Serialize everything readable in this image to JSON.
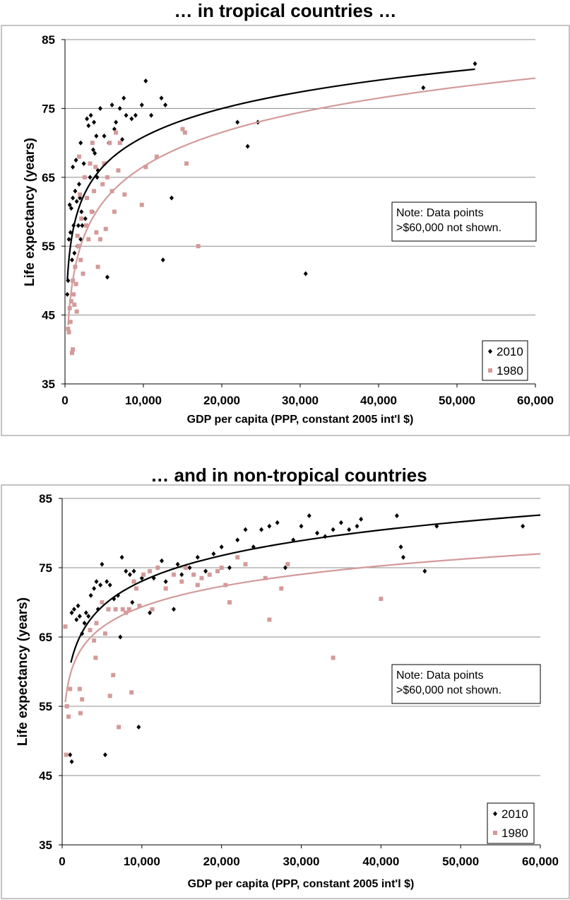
{
  "chart_data": [
    {
      "type": "scatter",
      "title": "… in tropical countries …",
      "xlabel": "GDP per capita (PPP, constant 2005 int'l $)",
      "ylabel": "Life expectancy (years)",
      "xlim": [
        0,
        60000
      ],
      "ylim": [
        35,
        85
      ],
      "x_ticks": [
        "0",
        "10,000",
        "20,000",
        "30,000",
        "40,000",
        "50,000",
        "60,000"
      ],
      "y_ticks": [
        "35",
        "45",
        "55",
        "65",
        "75",
        "85"
      ],
      "grid": "horizontal",
      "note": [
        "Note: Data points",
        ">$60,000 not shown."
      ],
      "legend_position": "bottom-right",
      "series": [
        {
          "name": "2010",
          "color": "#000000",
          "marker": "diamond",
          "points": [
            [
              300,
              48
            ],
            [
              400,
              50
            ],
            [
              500,
              56
            ],
            [
              600,
              61
            ],
            [
              700,
              57
            ],
            [
              800,
              60.5
            ],
            [
              900,
              53
            ],
            [
              1000,
              62
            ],
            [
              1000,
              66.5
            ],
            [
              1100,
              58
            ],
            [
              1200,
              54
            ],
            [
              1300,
              63
            ],
            [
              1400,
              67.5
            ],
            [
              1500,
              61.5
            ],
            [
              1600,
              55
            ],
            [
              1700,
              58
            ],
            [
              1800,
              64
            ],
            [
              1900,
              62
            ],
            [
              2000,
              56
            ],
            [
              2000,
              70
            ],
            [
              2100,
              60
            ],
            [
              2200,
              58
            ],
            [
              2400,
              67
            ],
            [
              2600,
              59
            ],
            [
              2800,
              73.5
            ],
            [
              3000,
              72.5
            ],
            [
              3200,
              65
            ],
            [
              3300,
              74
            ],
            [
              3500,
              60
            ],
            [
              3600,
              69
            ],
            [
              3700,
              73
            ],
            [
              3800,
              68.5
            ],
            [
              4000,
              71
            ],
            [
              4100,
              65
            ],
            [
              4200,
              66
            ],
            [
              4500,
              75
            ],
            [
              5000,
              71
            ],
            [
              5400,
              50.5
            ],
            [
              5600,
              70
            ],
            [
              6000,
              75.5
            ],
            [
              6300,
              72
            ],
            [
              6500,
              73
            ],
            [
              7000,
              75
            ],
            [
              7300,
              70.5
            ],
            [
              7500,
              76.5
            ],
            [
              7800,
              74
            ],
            [
              8500,
              73.5
            ],
            [
              9000,
              74
            ],
            [
              9800,
              75.5
            ],
            [
              10300,
              79
            ],
            [
              11000,
              74
            ],
            [
              12300,
              76.5
            ],
            [
              12500,
              53
            ],
            [
              12800,
              75.5
            ],
            [
              13600,
              62
            ],
            [
              22000,
              73
            ],
            [
              23300,
              69.5
            ],
            [
              24600,
              73
            ],
            [
              30700,
              51
            ],
            [
              45700,
              78
            ],
            [
              52300,
              81.5
            ]
          ]
        },
        {
          "name": "1980",
          "color": "#d49a9a",
          "marker": "square",
          "points": [
            [
              400,
              43
            ],
            [
              500,
              42.5
            ],
            [
              600,
              46
            ],
            [
              700,
              44
            ],
            [
              800,
              47
            ],
            [
              900,
              39.5
            ],
            [
              1000,
              40
            ],
            [
              1000,
              50
            ],
            [
              1100,
              48
            ],
            [
              1200,
              46.5
            ],
            [
              1300,
              52
            ],
            [
              1400,
              49.5
            ],
            [
              1500,
              45.5
            ],
            [
              1600,
              56.5
            ],
            [
              1700,
              55
            ],
            [
              1800,
              68
            ],
            [
              1900,
              62.5
            ],
            [
              2000,
              53
            ],
            [
              2100,
              59
            ],
            [
              2300,
              51
            ],
            [
              2500,
              65
            ],
            [
              2700,
              58
            ],
            [
              2800,
              62
            ],
            [
              3000,
              56
            ],
            [
              3200,
              67
            ],
            [
              3400,
              60
            ],
            [
              3500,
              70
            ],
            [
              3700,
              63
            ],
            [
              3900,
              66.5
            ],
            [
              4000,
              57
            ],
            [
              4200,
              52
            ],
            [
              4500,
              56
            ],
            [
              4800,
              64
            ],
            [
              5000,
              67
            ],
            [
              5200,
              57.5
            ],
            [
              5400,
              65
            ],
            [
              5700,
              70
            ],
            [
              6000,
              63
            ],
            [
              6300,
              60
            ],
            [
              6500,
              71.5
            ],
            [
              6800,
              66
            ],
            [
              7000,
              70
            ],
            [
              7600,
              62.5
            ],
            [
              9800,
              61
            ],
            [
              10300,
              66.5
            ],
            [
              11700,
              68
            ],
            [
              15000,
              72
            ],
            [
              15300,
              71.5
            ],
            [
              15500,
              67
            ],
            [
              17000,
              55
            ]
          ]
        }
      ],
      "trendlines": [
        {
          "series": "2010",
          "type": "logarithmic",
          "color": "#000000",
          "x_range": [
            300,
            52300
          ],
          "y_range": [
            50,
            80.7
          ]
        },
        {
          "series": "1980",
          "type": "logarithmic",
          "color": "#d49a9a",
          "x_range": [
            400,
            60000
          ],
          "y_range": [
            43.5,
            79.4
          ]
        }
      ]
    },
    {
      "type": "scatter",
      "title": "… and in non-tropical countries",
      "xlabel": "GDP per capita (PPP, constant 2005 int'l $)",
      "ylabel": "Life expectancy (years)",
      "xlim": [
        0,
        60000
      ],
      "ylim": [
        35,
        85
      ],
      "x_ticks": [
        "0",
        "10,000",
        "20,000",
        "30,000",
        "40,000",
        "50,000",
        "60,000"
      ],
      "y_ticks": [
        "35",
        "45",
        "55",
        "65",
        "75",
        "85"
      ],
      "grid": "horizontal",
      "note": [
        "Note: Data points",
        ">$60,000 not shown."
      ],
      "legend_position": "bottom-right",
      "series": [
        {
          "name": "2010",
          "color": "#000000",
          "marker": "diamond",
          "points": [
            [
              1000,
              48
            ],
            [
              1200,
              47
            ],
            [
              1200,
              68.5
            ],
            [
              1500,
              69
            ],
            [
              1800,
              67.5
            ],
            [
              2000,
              69.5
            ],
            [
              2200,
              68
            ],
            [
              2500,
              65.5
            ],
            [
              2800,
              67
            ],
            [
              3000,
              68.5
            ],
            [
              3300,
              68
            ],
            [
              3600,
              71
            ],
            [
              4000,
              72
            ],
            [
              4300,
              73
            ],
            [
              4500,
              69
            ],
            [
              4800,
              72.5
            ],
            [
              5000,
              75.5
            ],
            [
              5400,
              48
            ],
            [
              5600,
              73
            ],
            [
              6000,
              72.5
            ],
            [
              6500,
              70.5
            ],
            [
              7000,
              71
            ],
            [
              7300,
              65
            ],
            [
              7500,
              76.5
            ],
            [
              8000,
              74.5
            ],
            [
              8500,
              74
            ],
            [
              8800,
              70
            ],
            [
              9000,
              74.5
            ],
            [
              9600,
              52
            ],
            [
              10000,
              73.5
            ],
            [
              11000,
              68.5
            ],
            [
              11500,
              73.5
            ],
            [
              12000,
              75
            ],
            [
              12500,
              76
            ],
            [
              13000,
              73
            ],
            [
              14000,
              69
            ],
            [
              14500,
              75.5
            ],
            [
              15000,
              74
            ],
            [
              16000,
              75
            ],
            [
              17000,
              76.5
            ],
            [
              18000,
              74.5
            ],
            [
              19000,
              77
            ],
            [
              20000,
              78
            ],
            [
              21000,
              75
            ],
            [
              22000,
              79
            ],
            [
              23000,
              80.5
            ],
            [
              24000,
              78
            ],
            [
              25000,
              80.5
            ],
            [
              26000,
              81
            ],
            [
              27000,
              81.5
            ],
            [
              28000,
              75
            ],
            [
              29000,
              79
            ],
            [
              30000,
              81
            ],
            [
              31000,
              82.5
            ],
            [
              32000,
              80
            ],
            [
              33000,
              79.5
            ],
            [
              34000,
              80.5
            ],
            [
              35000,
              81.5
            ],
            [
              36000,
              80.5
            ],
            [
              37000,
              81
            ],
            [
              37500,
              82
            ],
            [
              42000,
              82.5
            ],
            [
              42500,
              78
            ],
            [
              42800,
              76.5
            ],
            [
              45500,
              74.5
            ],
            [
              47000,
              81
            ],
            [
              57800,
              81
            ]
          ]
        },
        {
          "name": "1980",
          "color": "#d49a9a",
          "marker": "square",
          "points": [
            [
              400,
              66.5
            ],
            [
              500,
              48
            ],
            [
              600,
              55
            ],
            [
              800,
              53.5
            ],
            [
              1000,
              57.5
            ],
            [
              2200,
              57.5
            ],
            [
              2300,
              54
            ],
            [
              2500,
              56
            ],
            [
              3500,
              66
            ],
            [
              4000,
              64.5
            ],
            [
              4200,
              62
            ],
            [
              4300,
              67
            ],
            [
              5000,
              70
            ],
            [
              5400,
              65.5
            ],
            [
              5800,
              69
            ],
            [
              6000,
              56.5
            ],
            [
              6400,
              59.5
            ],
            [
              6700,
              69
            ],
            [
              7100,
              52
            ],
            [
              7600,
              69
            ],
            [
              8000,
              68.5
            ],
            [
              8400,
              69
            ],
            [
              8700,
              57
            ],
            [
              9000,
              73
            ],
            [
              9300,
              72
            ],
            [
              9700,
              69.5
            ],
            [
              10200,
              74
            ],
            [
              11000,
              74.5
            ],
            [
              11300,
              69
            ],
            [
              12000,
              75
            ],
            [
              13000,
              72
            ],
            [
              14000,
              74
            ],
            [
              15000,
              73
            ],
            [
              15500,
              75
            ],
            [
              16500,
              74
            ],
            [
              17000,
              72.5
            ],
            [
              17500,
              73.5
            ],
            [
              18500,
              74
            ],
            [
              19500,
              74.5
            ],
            [
              20000,
              75
            ],
            [
              20500,
              72.5
            ],
            [
              21000,
              70
            ],
            [
              22000,
              76.5
            ],
            [
              23000,
              75.5
            ],
            [
              25500,
              73.5
            ],
            [
              26000,
              67.5
            ],
            [
              27500,
              72
            ],
            [
              28300,
              75.5
            ],
            [
              34000,
              62
            ],
            [
              40000,
              70.5
            ]
          ]
        }
      ],
      "trendlines": [
        {
          "series": "2010",
          "type": "logarithmic",
          "color": "#000000",
          "x_range": [
            1100,
            60000
          ],
          "y_range": [
            61.3,
            82.6
          ]
        },
        {
          "series": "1980",
          "type": "logarithmic",
          "color": "#d49a9a",
          "x_range": [
            400,
            60000
          ],
          "y_range": [
            55.6,
            77
          ]
        }
      ]
    }
  ]
}
